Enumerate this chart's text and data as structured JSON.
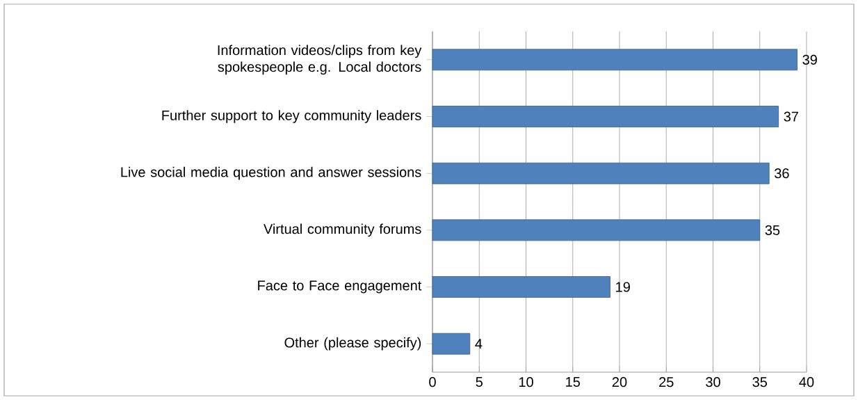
{
  "chart_data": {
    "type": "bar",
    "orientation": "horizontal",
    "categories": [
      "Information videos/clips from key spokespeople e.g. Local doctors",
      "Further support to key community leaders",
      "Live social media question and answer sessions",
      "Virtual community forums",
      "Face to Face engagement",
      "Other (please specify)"
    ],
    "values": [
      39,
      37,
      36,
      35,
      19,
      4
    ],
    "color": "#4f81bd",
    "xlim": [
      0,
      40
    ],
    "xticks": [
      0,
      5,
      10,
      15,
      20,
      25,
      30,
      35,
      40
    ],
    "grid": "x",
    "data_labels": true
  }
}
